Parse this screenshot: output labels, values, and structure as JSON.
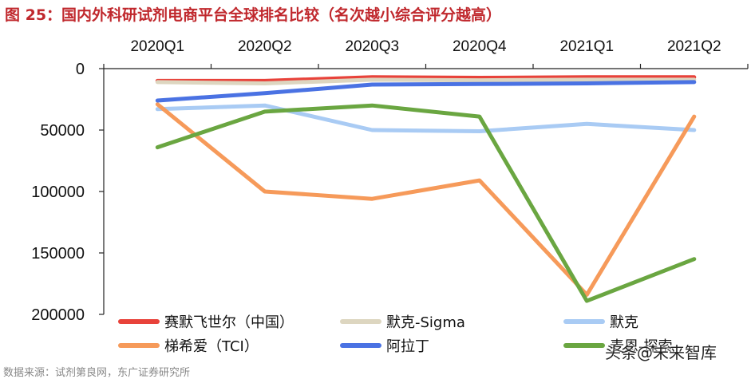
{
  "figure": {
    "title": "图 25：国内外科研试剂电商平台全球排名比较（名次越小综合评分越高）",
    "source": "数据来源：试剂第良网，东广证券研究所",
    "watermark": "头条@未来智库"
  },
  "chart_data": {
    "type": "line",
    "x_axis_position": "top",
    "y_inverted": true,
    "ylim": [
      0,
      200000
    ],
    "yticks": [
      0,
      50000,
      100000,
      150000,
      200000
    ],
    "ytick_labels": [
      "0",
      "50000",
      "100000",
      "150000",
      "200000"
    ],
    "categories": [
      "2020Q1",
      "2020Q2",
      "2020Q3",
      "2020Q4",
      "2021Q1",
      "2021Q2"
    ],
    "legend_position": "bottom",
    "series": [
      {
        "name": "赛默飞世尔（中国）",
        "color": "#e8423a",
        "values": [
          10000,
          10000,
          7000,
          7500,
          7000,
          7000
        ]
      },
      {
        "name": "默克-Sigma",
        "color": "#ddd6c0",
        "values": [
          11000,
          12000,
          9000,
          9500,
          9000,
          9000
        ]
      },
      {
        "name": "默克",
        "color": "#a9cbf4",
        "values": [
          33000,
          30000,
          50000,
          51000,
          45000,
          50000
        ]
      },
      {
        "name": "梯希爱（TCI）",
        "color": "#f69a5a",
        "values": [
          29000,
          100000,
          106000,
          91000,
          184000,
          39000
        ]
      },
      {
        "name": "阿拉丁",
        "color": "#4a72e3",
        "values": [
          26000,
          20000,
          13000,
          12500,
          12000,
          11000
        ]
      },
      {
        "name": "麦恩-探索",
        "color": "#6aa641",
        "values": [
          64000,
          35000,
          30000,
          39000,
          189000,
          155000
        ]
      }
    ]
  }
}
